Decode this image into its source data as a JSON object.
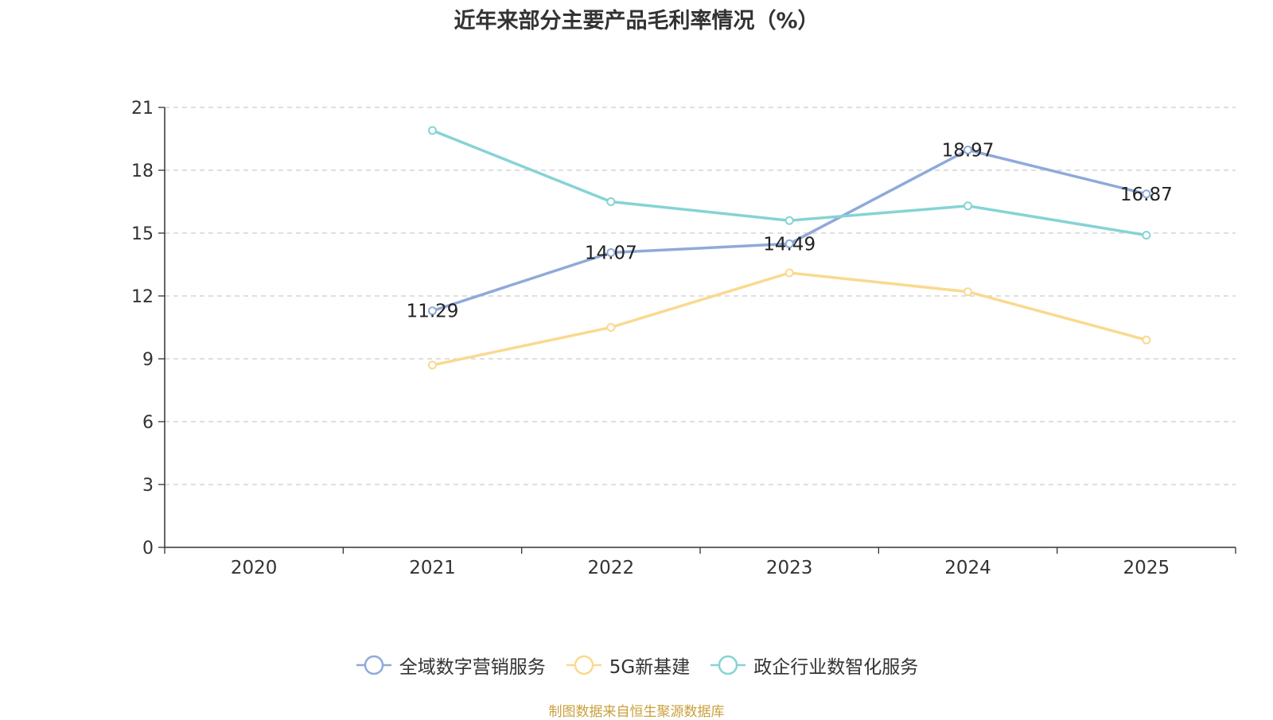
{
  "title": "近年来部分主要产品毛利率情况（%）",
  "source": "制图数据来自恒生聚源数据库",
  "chart_data": {
    "type": "line",
    "title": "近年来部分主要产品毛利率情况（%）",
    "categories": [
      "2020",
      "2021",
      "2022",
      "2023",
      "2024",
      "2025"
    ],
    "ylim": [
      0,
      21
    ],
    "yticks": [
      0,
      3,
      6,
      9,
      12,
      15,
      18,
      21
    ],
    "grid": true,
    "legend_position": "bottom",
    "series": [
      {
        "name": "全域数字营销服务",
        "color": "#8eaad8",
        "show_labels": true,
        "labels": [
          null,
          "11.29",
          "14.07",
          "14.49",
          "18.97",
          "16.87"
        ],
        "values": [
          null,
          11.29,
          14.07,
          14.49,
          18.97,
          16.87
        ]
      },
      {
        "name": "5G新基建",
        "color": "#fad98f",
        "show_labels": false,
        "values": [
          null,
          8.7,
          10.5,
          13.1,
          12.2,
          9.9
        ]
      },
      {
        "name": "政企行业数智化服务",
        "color": "#86d3d4",
        "show_labels": false,
        "values": [
          null,
          19.9,
          16.5,
          15.6,
          16.3,
          14.9
        ]
      }
    ]
  }
}
